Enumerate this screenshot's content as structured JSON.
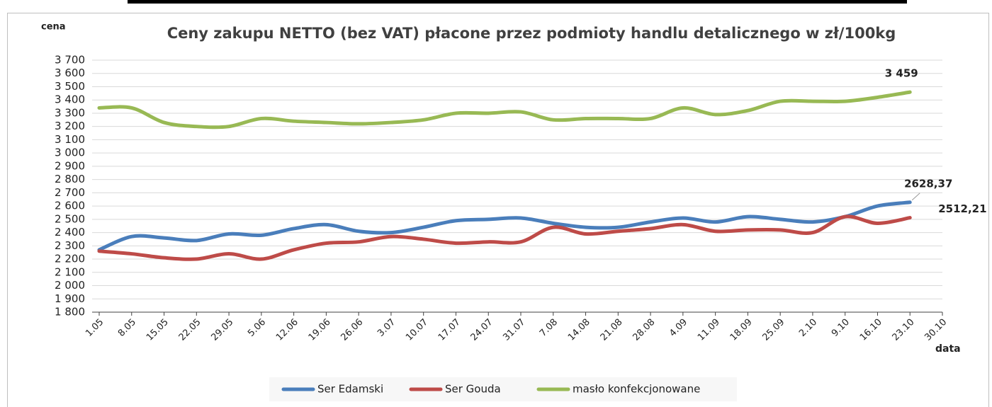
{
  "chart_data": {
    "type": "line",
    "title": "Ceny zakupu NETTO (bez VAT) płacone przez podmioty handlu detalicznego w zł/100kg",
    "y_label": "cena",
    "x_label": "data",
    "categories": [
      "1.05",
      "8.05",
      "15.05",
      "22.05",
      "29.05",
      "5.06",
      "12.06",
      "19.06",
      "26.06",
      "3.07",
      "10.07",
      "17.07",
      "24.07",
      "31.07",
      "7.08",
      "14.08",
      "21.08",
      "28.08",
      "4.09",
      "11.09",
      "18.09",
      "25.09",
      "2.10",
      "9.10",
      "16.10",
      "23.10",
      "30.10"
    ],
    "series": [
      {
        "name": "Ser Edamski",
        "color": "#4a7ebb",
        "values": [
          2270,
          2370,
          2360,
          2340,
          2390,
          2380,
          2430,
          2460,
          2410,
          2400,
          2440,
          2490,
          2500,
          2510,
          2470,
          2440,
          2440,
          2480,
          2510,
          2480,
          2520,
          2500,
          2480,
          2520,
          2600,
          2628.37,
          null
        ],
        "value_labels": [
          null,
          null,
          null,
          null,
          null,
          null,
          null,
          null,
          null,
          null,
          null,
          null,
          null,
          null,
          null,
          null,
          null,
          null,
          null,
          null,
          null,
          null,
          null,
          null,
          null,
          "2628,37",
          null
        ]
      },
      {
        "name": "Ser Gouda",
        "color": "#be4b48",
        "values": [
          2260,
          2240,
          2210,
          2200,
          2240,
          2200,
          2270,
          2320,
          2330,
          2370,
          2350,
          2320,
          2330,
          2330,
          2440,
          2390,
          2410,
          2430,
          2460,
          2410,
          2420,
          2420,
          2400,
          2520,
          2470,
          2512.21,
          null
        ],
        "value_labels": [
          null,
          null,
          null,
          null,
          null,
          null,
          null,
          null,
          null,
          null,
          null,
          null,
          null,
          null,
          null,
          null,
          null,
          null,
          null,
          null,
          null,
          null,
          null,
          null,
          null,
          "2512,21",
          null
        ]
      },
      {
        "name": "masło konfekcjonowane",
        "color": "#98b954",
        "values": [
          3340,
          3340,
          3230,
          3200,
          3200,
          3260,
          3240,
          3230,
          3220,
          3230,
          3250,
          3300,
          3300,
          3310,
          3250,
          3260,
          3260,
          3260,
          3340,
          3290,
          3320,
          3390,
          3390,
          3390,
          3420,
          3459,
          null
        ],
        "value_labels": [
          null,
          null,
          null,
          null,
          null,
          null,
          null,
          null,
          null,
          null,
          null,
          null,
          null,
          null,
          null,
          null,
          null,
          null,
          null,
          null,
          null,
          null,
          null,
          null,
          null,
          "3 459",
          null
        ]
      }
    ],
    "ylim": [
      1800,
      3700
    ],
    "yticks": [
      {
        "value": 1800,
        "label": "1 800"
      },
      {
        "value": 1900,
        "label": "1 900"
      },
      {
        "value": 2000,
        "label": "2 000"
      },
      {
        "value": 2100,
        "label": "2 100"
      },
      {
        "value": 2200,
        "label": "2 200"
      },
      {
        "value": 2300,
        "label": "2 300"
      },
      {
        "value": 2400,
        "label": "2 400"
      },
      {
        "value": 2500,
        "label": "2 500"
      },
      {
        "value": 2600,
        "label": "2 600"
      },
      {
        "value": 2700,
        "label": "2 700"
      },
      {
        "value": 2800,
        "label": "2 800"
      },
      {
        "value": 2900,
        "label": "2 900"
      },
      {
        "value": 3000,
        "label": "3 000"
      },
      {
        "value": 3100,
        "label": "3 100"
      },
      {
        "value": 3200,
        "label": "3 200"
      },
      {
        "value": 3300,
        "label": "3 300"
      },
      {
        "value": 3400,
        "label": "3 400"
      },
      {
        "value": 3500,
        "label": "3 500"
      },
      {
        "value": 3600,
        "label": "3 600"
      },
      {
        "value": 3700,
        "label": "3 700"
      }
    ],
    "grid": true,
    "legend": "bottom"
  }
}
